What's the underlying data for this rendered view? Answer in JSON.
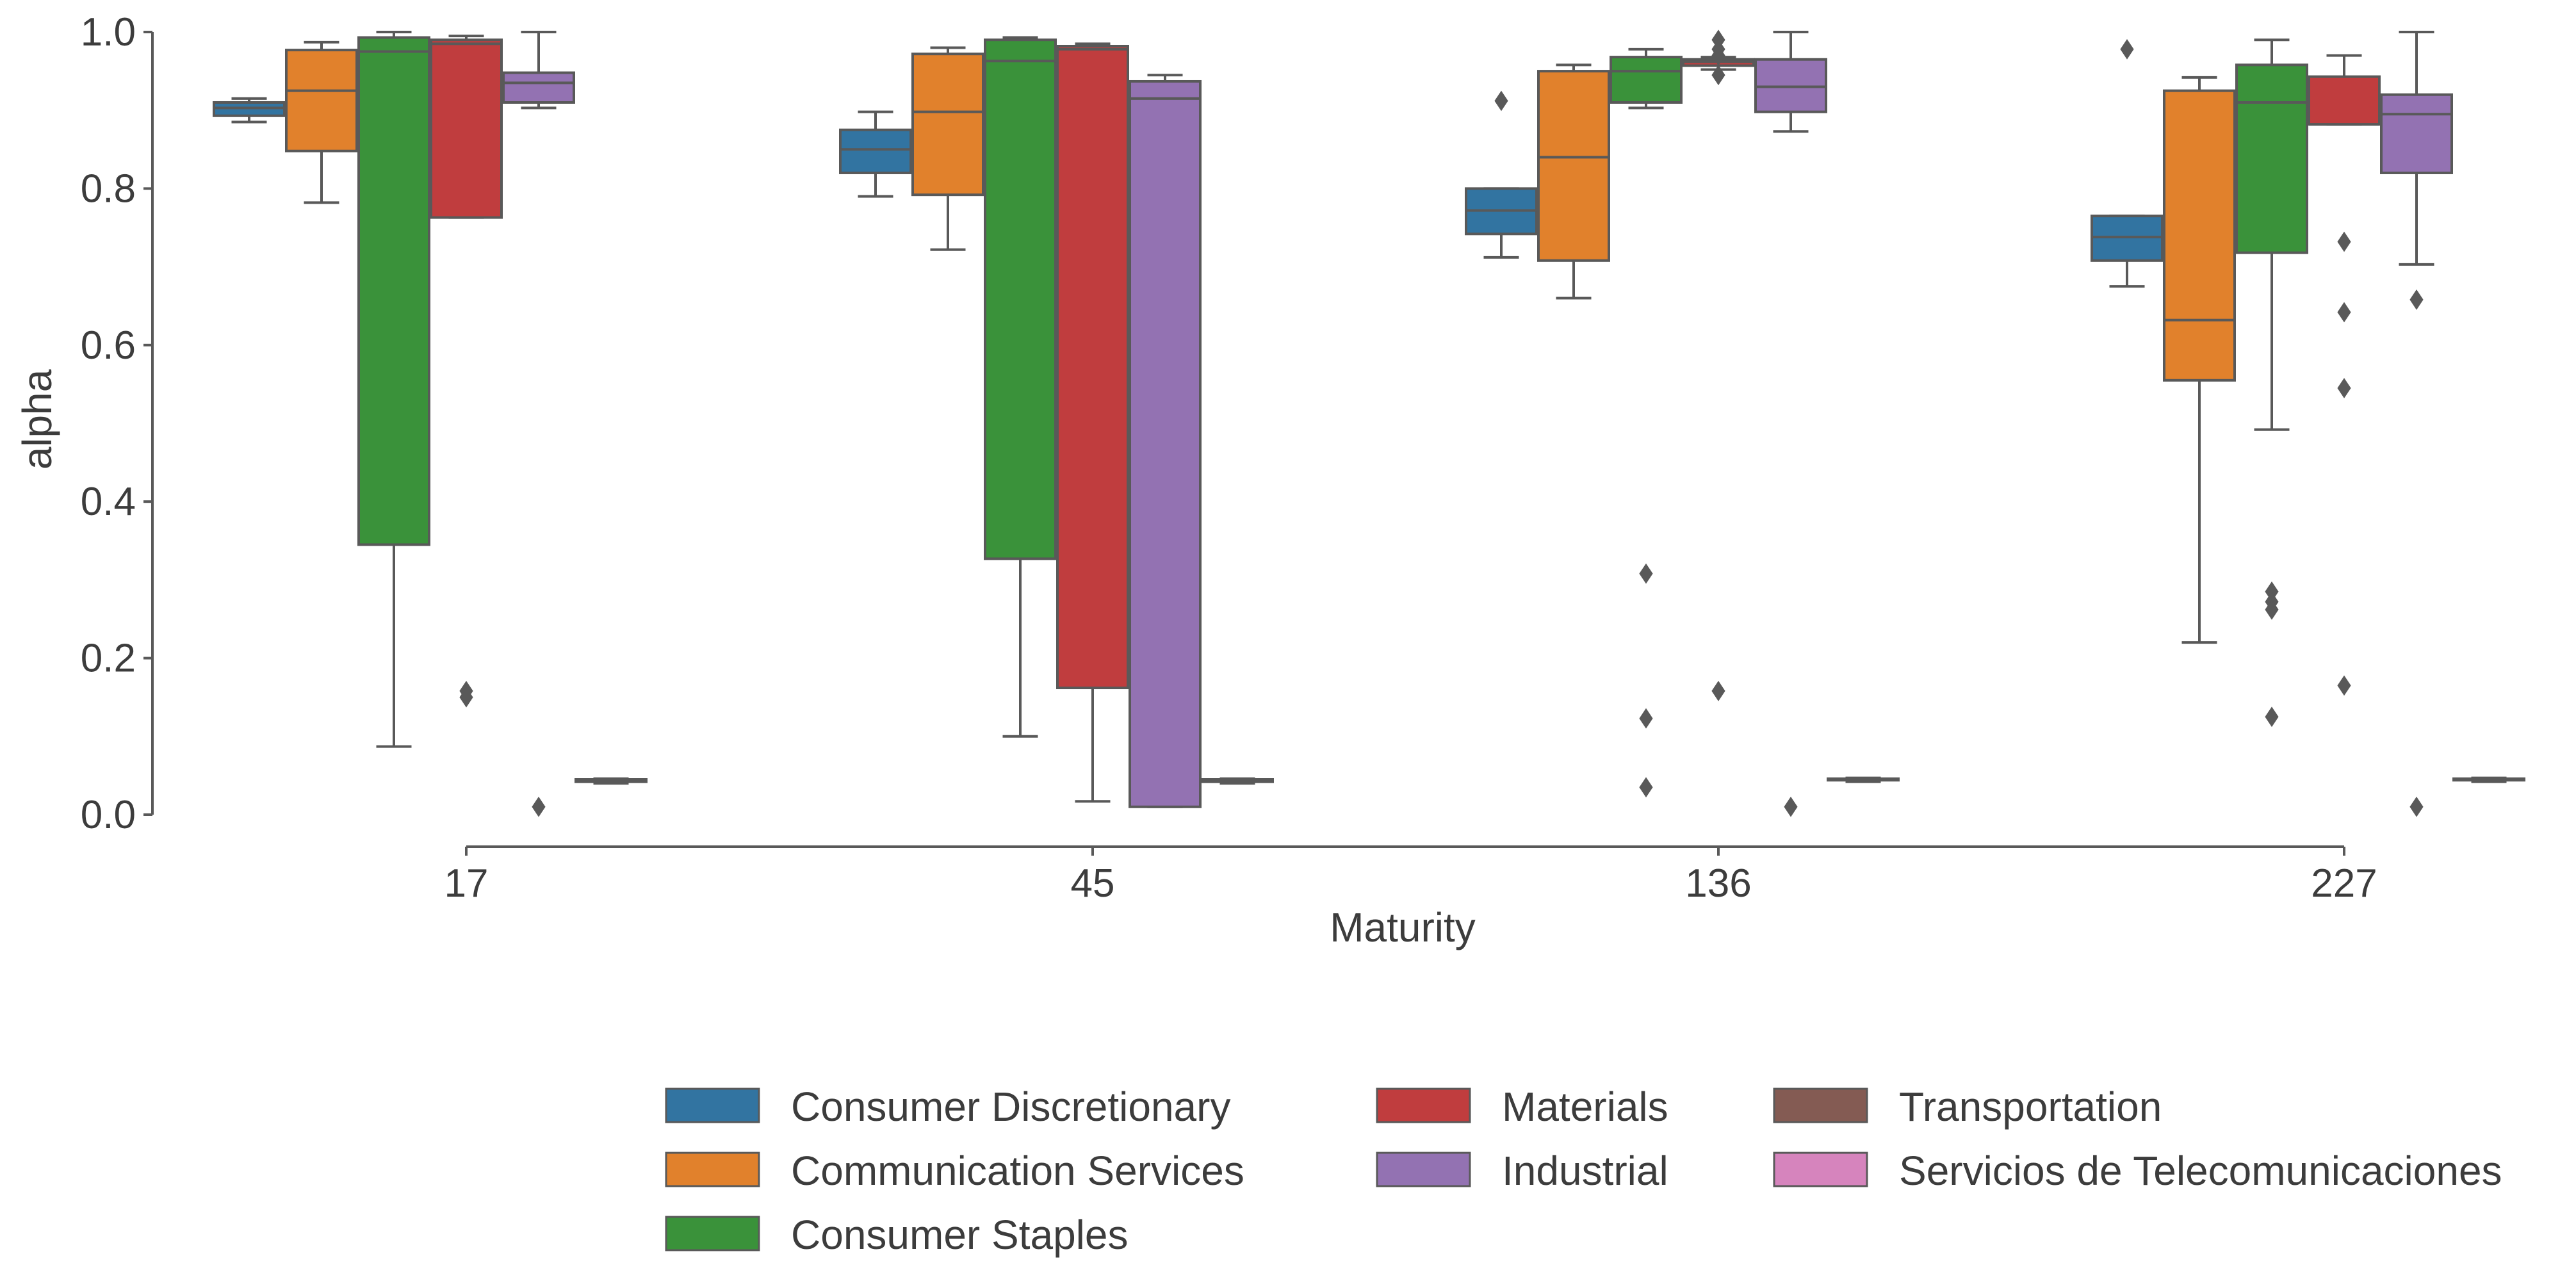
{
  "chart_data": {
    "type": "box",
    "xlabel": "Maturity",
    "ylabel": "alpha",
    "ylim": [
      0.0,
      1.0
    ],
    "yticks": [
      "0.0",
      "0.2",
      "0.4",
      "0.6",
      "0.8",
      "1.0"
    ],
    "ytick_values": [
      0.0,
      0.2,
      0.4,
      0.6,
      0.8,
      1.0
    ],
    "categories": [
      "17",
      "45",
      "136",
      "227"
    ],
    "grid": false,
    "legend_position": "bottom-center",
    "series": [
      {
        "name": "Consumer Discretionary",
        "color": "#3274a1",
        "boxes": [
          {
            "whislo": 0.885,
            "q1": 0.893,
            "med": 0.903,
            "q3": 0.91,
            "whishi": 0.915,
            "fliers": []
          },
          {
            "whislo": 0.79,
            "q1": 0.82,
            "med": 0.85,
            "q3": 0.875,
            "whishi": 0.898,
            "fliers": []
          },
          {
            "whislo": 0.712,
            "q1": 0.742,
            "med": 0.772,
            "q3": 0.8,
            "whishi": 0.8,
            "fliers": [
              0.912
            ]
          },
          {
            "whislo": 0.675,
            "q1": 0.708,
            "med": 0.738,
            "q3": 0.765,
            "whishi": 0.765,
            "fliers": [
              0.978
            ]
          }
        ]
      },
      {
        "name": "Communication Services",
        "color": "#e1812c",
        "boxes": [
          {
            "whislo": 0.782,
            "q1": 0.848,
            "med": 0.925,
            "q3": 0.977,
            "whishi": 0.987,
            "fliers": []
          },
          {
            "whislo": 0.722,
            "q1": 0.792,
            "med": 0.898,
            "q3": 0.972,
            "whishi": 0.98,
            "fliers": []
          },
          {
            "whislo": 0.66,
            "q1": 0.708,
            "med": 0.84,
            "q3": 0.95,
            "whishi": 0.958,
            "fliers": []
          },
          {
            "whislo": 0.22,
            "q1": 0.555,
            "med": 0.632,
            "q3": 0.925,
            "whishi": 0.942,
            "fliers": []
          }
        ]
      },
      {
        "name": "Consumer Staples",
        "color": "#3a923a",
        "boxes": [
          {
            "whislo": 0.087,
            "q1": 0.345,
            "med": 0.975,
            "q3": 0.993,
            "whishi": 1.0,
            "fliers": []
          },
          {
            "whislo": 0.1,
            "q1": 0.327,
            "med": 0.963,
            "q3": 0.99,
            "whishi": 0.993,
            "fliers": []
          },
          {
            "whislo": 0.903,
            "q1": 0.91,
            "med": 0.95,
            "q3": 0.968,
            "whishi": 0.978,
            "fliers": [
              0.308,
              0.123,
              0.035
            ]
          },
          {
            "whislo": 0.492,
            "q1": 0.718,
            "med": 0.91,
            "q3": 0.958,
            "whishi": 0.99,
            "fliers": [
              0.285,
              0.272,
              0.262,
              0.125
            ]
          }
        ]
      },
      {
        "name": "Materials",
        "color": "#c03d3e",
        "boxes": [
          {
            "whislo": 0.763,
            "q1": 0.763,
            "med": 0.985,
            "q3": 0.99,
            "whishi": 0.995,
            "fliers": [
              0.158,
              0.15
            ]
          },
          {
            "whislo": 0.017,
            "q1": 0.162,
            "med": 0.978,
            "q3": 0.982,
            "whishi": 0.985,
            "fliers": []
          },
          {
            "whislo": 0.952,
            "q1": 0.957,
            "med": 0.962,
            "q3": 0.965,
            "whishi": 0.968,
            "fliers": [
              0.99,
              0.978,
              0.97,
              0.945,
              0.158
            ]
          },
          {
            "whislo": 0.882,
            "q1": 0.882,
            "med": 0.882,
            "q3": 0.943,
            "whishi": 0.97,
            "fliers": [
              0.732,
              0.642,
              0.545,
              0.165
            ]
          }
        ]
      },
      {
        "name": "Industrial",
        "color": "#9372b2",
        "boxes": [
          {
            "whislo": 0.903,
            "q1": 0.91,
            "med": 0.935,
            "q3": 0.948,
            "whishi": 1.0,
            "fliers": [
              0.01
            ]
          },
          {
            "whislo": 0.01,
            "q1": 0.01,
            "med": 0.915,
            "q3": 0.937,
            "whishi": 0.945,
            "fliers": []
          },
          {
            "whislo": 0.873,
            "q1": 0.898,
            "med": 0.93,
            "q3": 0.965,
            "whishi": 1.0,
            "fliers": [
              0.01
            ]
          },
          {
            "whislo": 0.703,
            "q1": 0.82,
            "med": 0.895,
            "q3": 0.92,
            "whishi": 1.0,
            "fliers": [
              0.658,
              0.01
            ]
          }
        ]
      },
      {
        "name": "Transportation",
        "color": "#845b53",
        "boxes": [
          {
            "whislo": 0.04,
            "q1": 0.042,
            "med": 0.043,
            "q3": 0.045,
            "whishi": 0.046,
            "fliers": []
          },
          {
            "whislo": 0.04,
            "q1": 0.042,
            "med": 0.043,
            "q3": 0.045,
            "whishi": 0.046,
            "fliers": []
          },
          {
            "whislo": 0.042,
            "q1": 0.044,
            "med": 0.045,
            "q3": 0.046,
            "whishi": 0.047,
            "fliers": []
          },
          {
            "whislo": 0.042,
            "q1": 0.044,
            "med": 0.045,
            "q3": 0.046,
            "whishi": 0.047,
            "fliers": []
          }
        ]
      },
      {
        "name": "Servicios de Telecomunicaciones",
        "color": "#d684bd",
        "boxes": [
          null,
          null,
          null,
          null
        ]
      }
    ],
    "legend_columns": [
      [
        "Consumer Discretionary",
        "Communication Services",
        "Consumer Staples"
      ],
      [
        "Materials",
        "Industrial"
      ],
      [
        "Transportation",
        "Servicios de Telecomunicaciones"
      ]
    ],
    "line_color": "#595959"
  }
}
